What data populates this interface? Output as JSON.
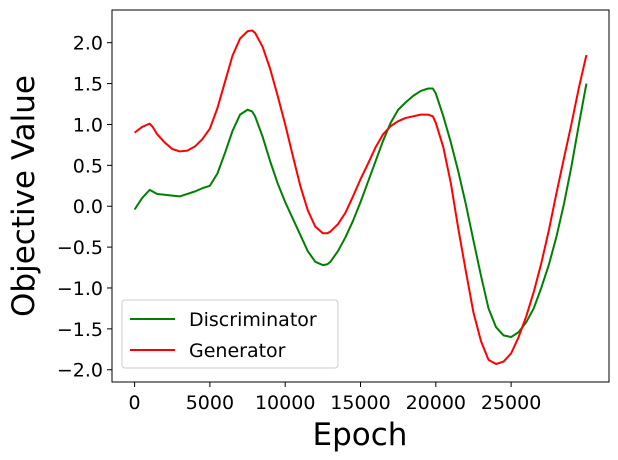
{
  "chart_data": {
    "type": "line",
    "title": "",
    "xlabel": "Epoch",
    "ylabel": "Objective Value",
    "xlim": [
      -1500,
      31500
    ],
    "ylim": [
      -2.15,
      2.4
    ],
    "xticks": [
      0,
      5000,
      10000,
      15000,
      20000,
      25000
    ],
    "xtick_labels": [
      "0",
      "5000",
      "10000",
      "15000",
      "20000",
      "25000"
    ],
    "yticks": [
      -2.0,
      -1.5,
      -1.0,
      -0.5,
      0.0,
      0.5,
      1.0,
      1.5,
      2.0
    ],
    "ytick_labels": [
      "−2.0",
      "−1.5",
      "−1.0",
      "−0.5",
      "0.0",
      "0.5",
      "1.0",
      "1.5",
      "2.0"
    ],
    "grid": false,
    "legend_position": "lower-left",
    "series": [
      {
        "name": "Discriminator",
        "color": "#008000",
        "x": [
          0,
          500,
          1000,
          1200,
          1500,
          2000,
          2500,
          3000,
          3500,
          4000,
          4500,
          5000,
          5500,
          6000,
          6500,
          7000,
          7500,
          7800,
          8000,
          8500,
          9000,
          9500,
          10000,
          10500,
          11000,
          11500,
          12000,
          12500,
          12800,
          13000,
          13500,
          14000,
          14500,
          15000,
          15500,
          16000,
          16500,
          17000,
          17500,
          18000,
          18500,
          19000,
          19500,
          19800,
          20000,
          20500,
          21000,
          21500,
          22000,
          22500,
          23000,
          23500,
          24000,
          24500,
          25000,
          25500,
          26000,
          26500,
          27000,
          27500,
          28000,
          28500,
          29000,
          29500,
          30000
        ],
        "y": [
          -0.04,
          0.1,
          0.2,
          0.18,
          0.15,
          0.14,
          0.13,
          0.12,
          0.15,
          0.18,
          0.22,
          0.25,
          0.4,
          0.65,
          0.92,
          1.12,
          1.18,
          1.16,
          1.1,
          0.85,
          0.55,
          0.28,
          0.05,
          -0.15,
          -0.35,
          -0.55,
          -0.68,
          -0.72,
          -0.71,
          -0.68,
          -0.55,
          -0.38,
          -0.18,
          0.05,
          0.3,
          0.55,
          0.8,
          1.02,
          1.18,
          1.27,
          1.35,
          1.41,
          1.44,
          1.44,
          1.38,
          1.1,
          0.78,
          0.42,
          0.02,
          -0.42,
          -0.85,
          -1.25,
          -1.48,
          -1.58,
          -1.6,
          -1.54,
          -1.42,
          -1.25,
          -1.0,
          -0.72,
          -0.38,
          0.02,
          0.48,
          1.0,
          1.5
        ]
      },
      {
        "name": "Generator",
        "color": "#ff0000",
        "x": [
          0,
          500,
          1000,
          1200,
          1500,
          2000,
          2500,
          3000,
          3500,
          4000,
          4500,
          5000,
          5500,
          6000,
          6500,
          7000,
          7500,
          7800,
          8000,
          8500,
          9000,
          9500,
          10000,
          10500,
          11000,
          11500,
          12000,
          12500,
          12800,
          13000,
          13500,
          14000,
          14500,
          15000,
          15500,
          16000,
          16500,
          17000,
          17500,
          18000,
          18500,
          19000,
          19500,
          19800,
          20000,
          20500,
          21000,
          21500,
          22000,
          22500,
          23000,
          23500,
          24000,
          24500,
          25000,
          25500,
          26000,
          26500,
          27000,
          27500,
          28000,
          28500,
          29000,
          29500,
          30000
        ],
        "y": [
          0.9,
          0.97,
          1.01,
          0.97,
          0.88,
          0.78,
          0.7,
          0.67,
          0.68,
          0.73,
          0.82,
          0.95,
          1.2,
          1.52,
          1.84,
          2.05,
          2.14,
          2.15,
          2.12,
          1.95,
          1.68,
          1.35,
          1.0,
          0.62,
          0.25,
          -0.05,
          -0.25,
          -0.33,
          -0.33,
          -0.31,
          -0.22,
          -0.08,
          0.12,
          0.33,
          0.52,
          0.72,
          0.88,
          0.98,
          1.04,
          1.08,
          1.1,
          1.12,
          1.12,
          1.1,
          1.02,
          0.72,
          0.28,
          -0.28,
          -0.8,
          -1.3,
          -1.65,
          -1.88,
          -1.93,
          -1.9,
          -1.8,
          -1.6,
          -1.35,
          -1.05,
          -0.7,
          -0.3,
          0.15,
          0.58,
          1.0,
          1.45,
          1.85
        ]
      }
    ]
  }
}
